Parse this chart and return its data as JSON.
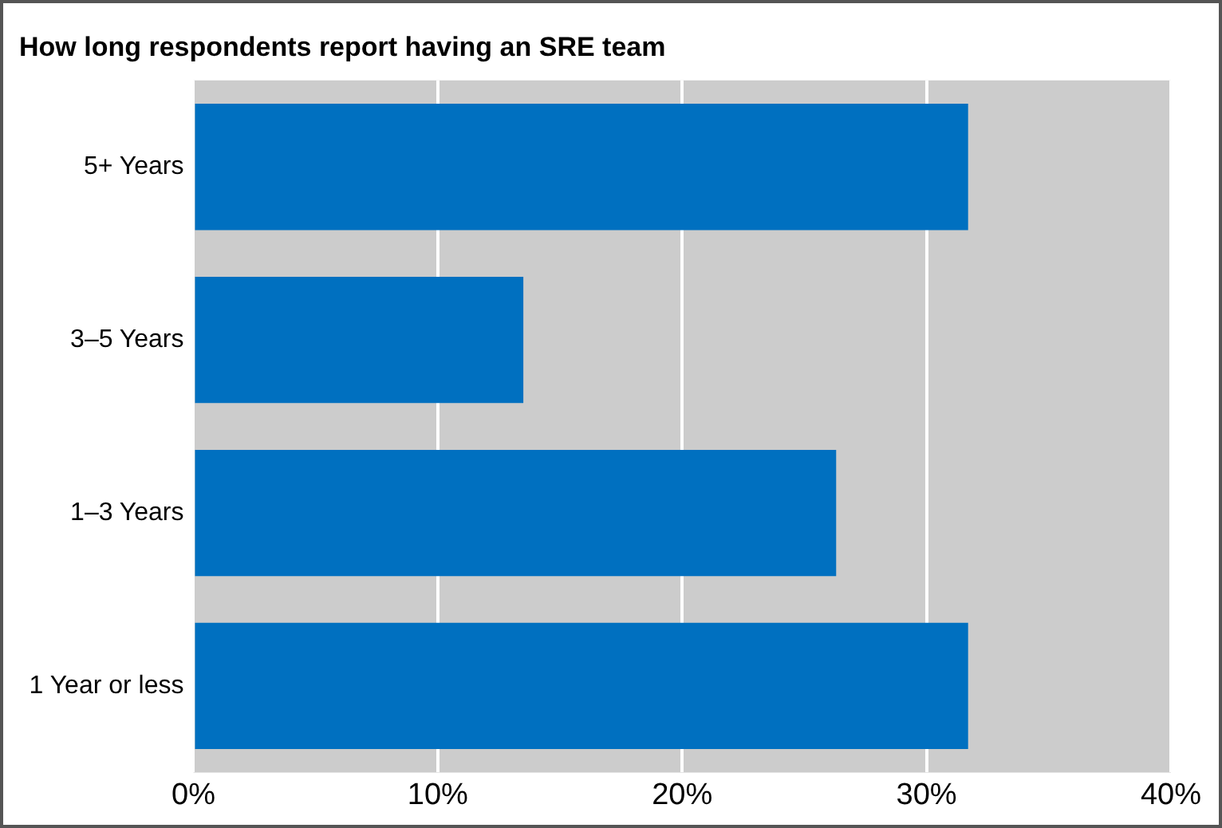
{
  "chart_data": {
    "type": "bar",
    "orientation": "horizontal",
    "title": "How long respondents report having an SRE team",
    "categories": [
      "5+ Years",
      "3–5 Years",
      "1–3 Years",
      "1 Year or less"
    ],
    "values": [
      31.7,
      13.5,
      26.3,
      31.7
    ],
    "color": "#0070c0",
    "xlim": [
      0,
      40
    ],
    "xticks": [
      {
        "value": 0,
        "label": "0%"
      },
      {
        "value": 10,
        "label": "10%"
      },
      {
        "value": 20,
        "label": "20%"
      },
      {
        "value": 30,
        "label": "30%"
      },
      {
        "value": 40,
        "label": "40%"
      }
    ],
    "grid": "x",
    "legend": false
  }
}
